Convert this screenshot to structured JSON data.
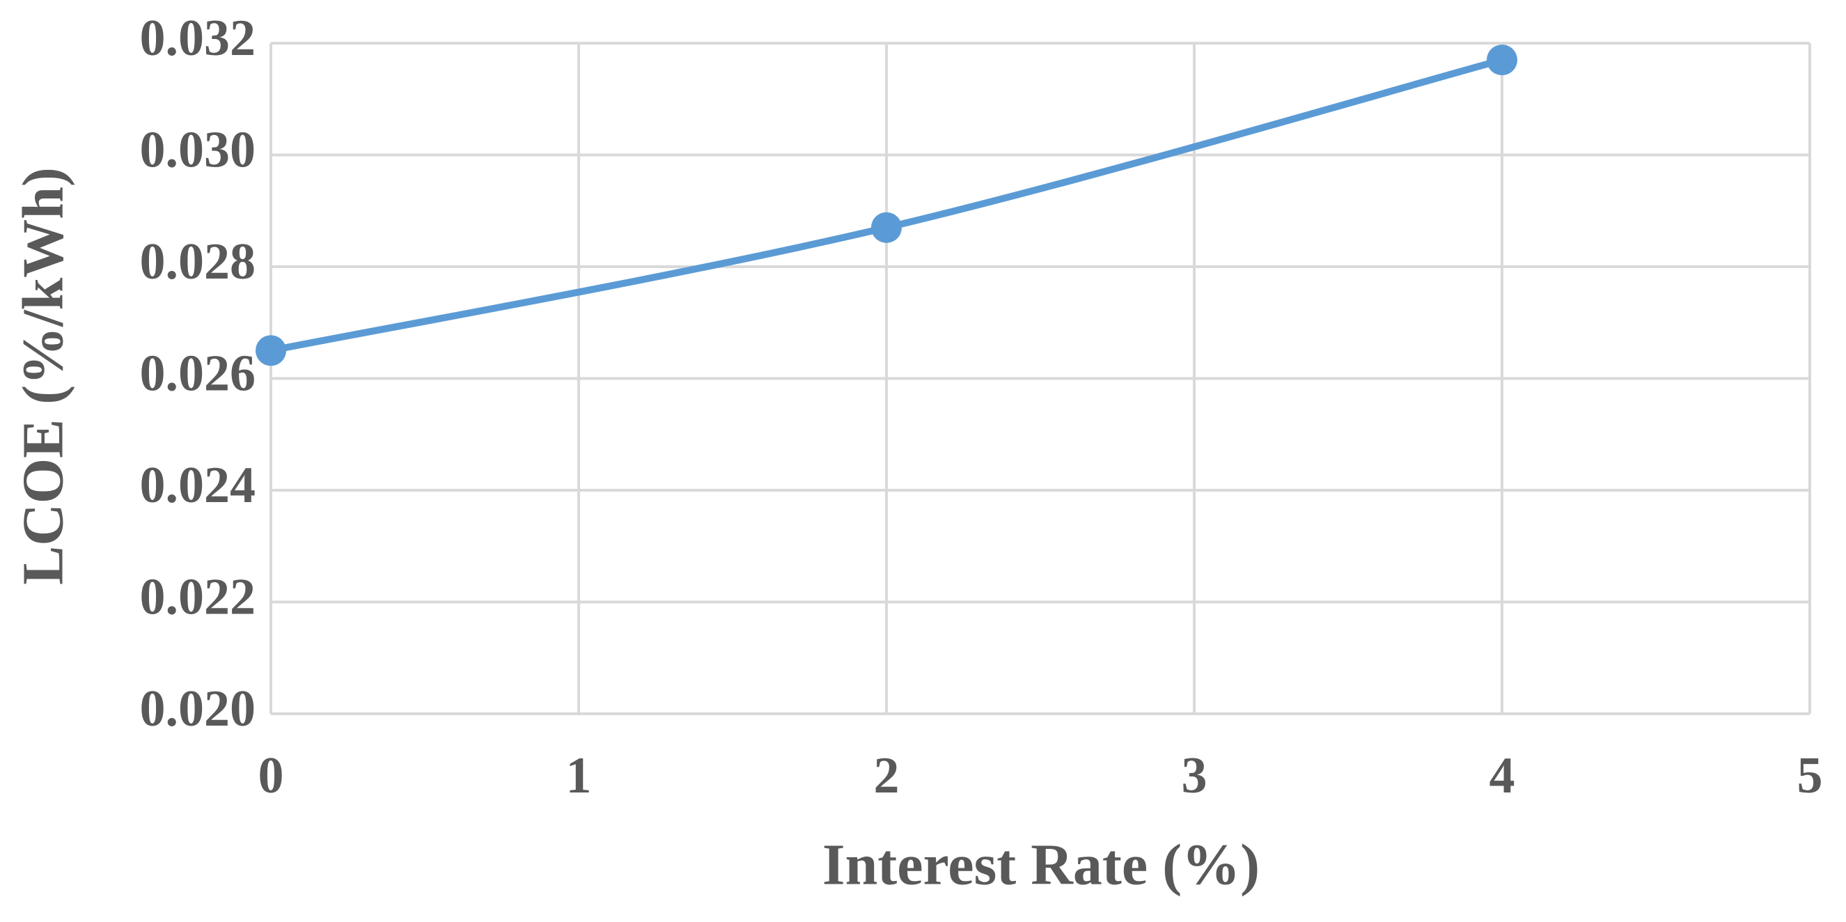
{
  "chart_data": {
    "type": "line",
    "x_label": "Interest Rate (%)",
    "y_label": "LCOE (%/kWh)",
    "x": [
      0,
      2,
      4
    ],
    "series": [
      {
        "color": "#5b9bd5",
        "values": [
          0.0265,
          0.0287,
          0.0317
        ]
      }
    ],
    "xlim": [
      0,
      5
    ],
    "xticks": [
      0,
      1,
      2,
      3,
      4,
      5
    ],
    "ylim": [
      0.02,
      0.032
    ],
    "yticks": [
      {
        "value": 0.02,
        "label": "0.020"
      },
      0.022,
      0.024,
      0.026,
      0.028,
      {
        "value": 0.03,
        "label": "0.030"
      },
      0.032
    ],
    "grid": true,
    "smooth": true
  }
}
